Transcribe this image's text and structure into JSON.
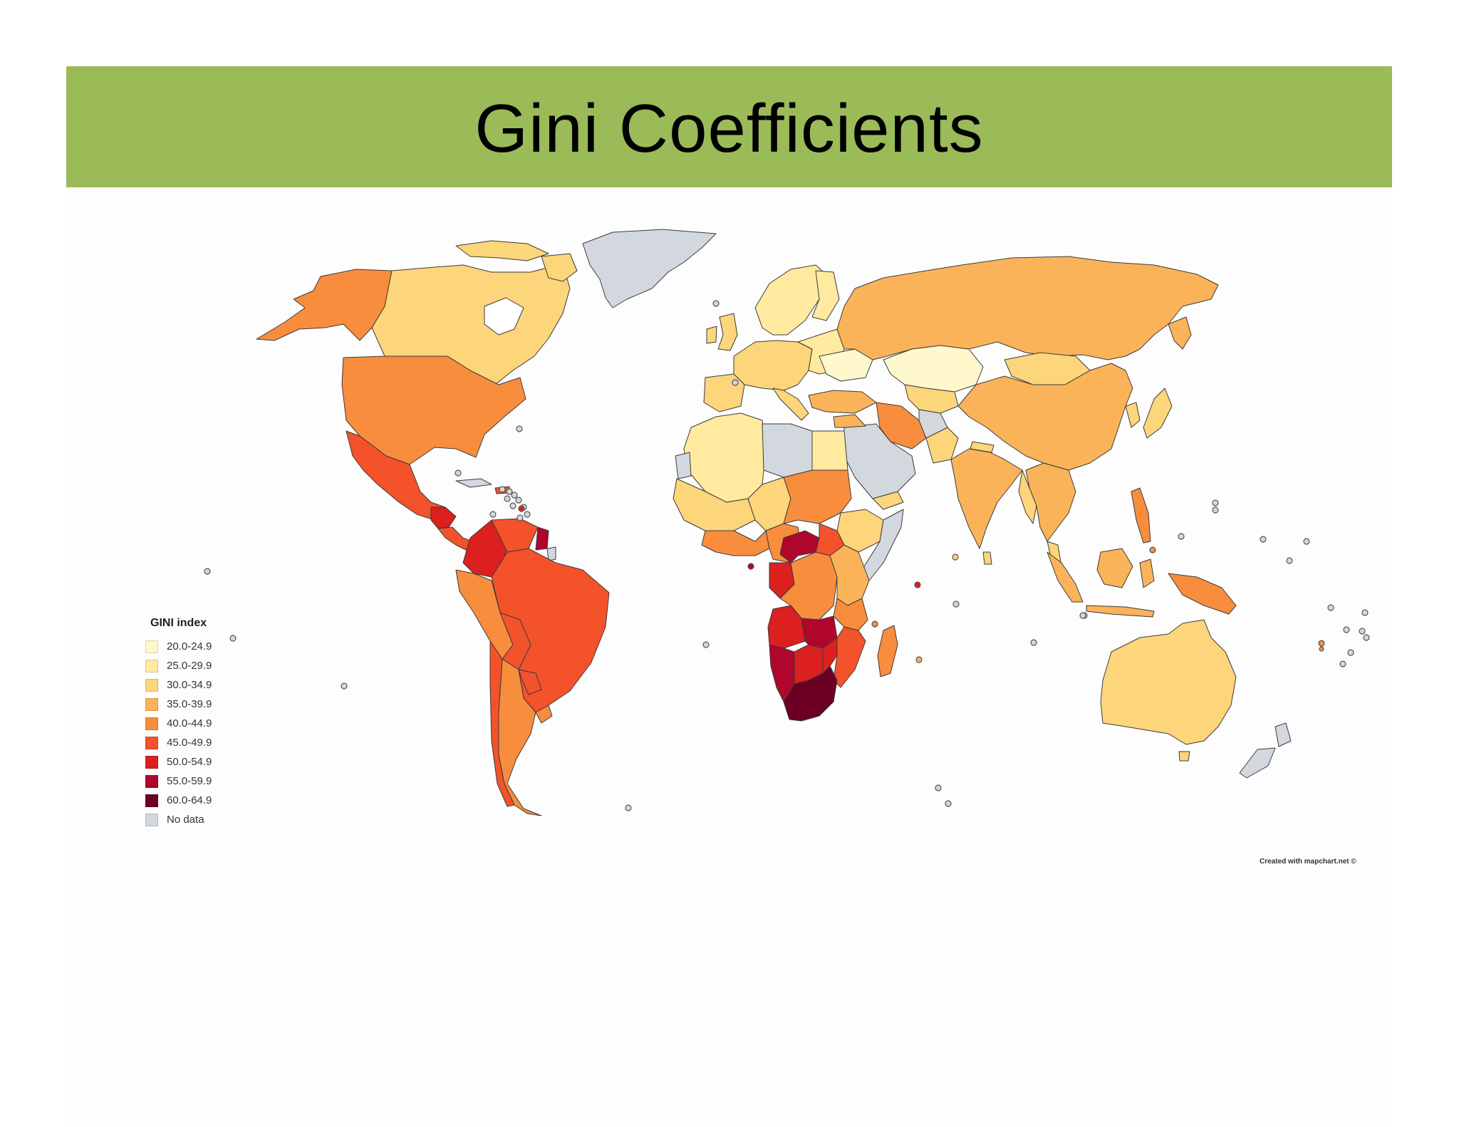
{
  "slide": {
    "title": "Gini Coefficients"
  },
  "legend": {
    "title": "GINI index",
    "items": [
      {
        "label": "20.0-24.9",
        "color": "#fff8cc"
      },
      {
        "label": "25.0-29.9",
        "color": "#ffeaa0"
      },
      {
        "label": "30.0-34.9",
        "color": "#fdd57a"
      },
      {
        "label": "35.0-39.9",
        "color": "#fbb359"
      },
      {
        "label": "40.0-44.9",
        "color": "#f88d3d"
      },
      {
        "label": "45.0-49.9",
        "color": "#f3522b"
      },
      {
        "label": "50.0-54.9",
        "color": "#dc1f1f"
      },
      {
        "label": "55.0-59.9",
        "color": "#b0062c"
      },
      {
        "label": "60.0-64.9",
        "color": "#6d0022"
      },
      {
        "label": "No data",
        "color": "#d2d8dd"
      }
    ]
  },
  "credit": "Created with mapchart.net ©",
  "colors": {
    "title_bar": "#9bbb59",
    "border": "#3b3b3b"
  }
}
